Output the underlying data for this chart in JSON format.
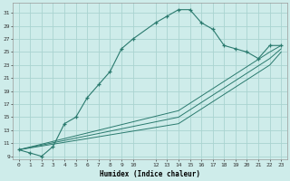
{
  "xlabel": "Humidex (Indice chaleur)",
  "background_color": "#ceecea",
  "grid_color": "#aad4d0",
  "line_color": "#2a7a6e",
  "xlim": [
    -0.5,
    23.5
  ],
  "ylim": [
    8.5,
    32.5
  ],
  "yticks": [
    9,
    11,
    13,
    15,
    17,
    19,
    21,
    23,
    25,
    27,
    29,
    31
  ],
  "xticks": [
    0,
    1,
    2,
    3,
    4,
    5,
    6,
    7,
    8,
    9,
    10,
    12,
    13,
    14,
    15,
    16,
    17,
    18,
    19,
    20,
    21,
    22,
    23
  ],
  "main_x": [
    0,
    1,
    2,
    3,
    4,
    5,
    6,
    7,
    8,
    9,
    10,
    12,
    13,
    14,
    15,
    16,
    17,
    18,
    19,
    20,
    21,
    22,
    23
  ],
  "main_y": [
    10,
    9.5,
    9,
    10.5,
    14,
    15,
    18,
    20,
    22,
    25.5,
    27,
    29.5,
    30.5,
    31.5,
    31.5,
    29.5,
    28.5,
    26,
    25.5,
    25,
    24,
    26,
    26
  ],
  "line2_x": [
    0,
    14,
    22,
    23
  ],
  "line2_y": [
    10,
    16,
    25,
    26
  ],
  "line3_x": [
    0,
    14,
    22,
    23
  ],
  "line3_y": [
    10,
    15,
    24,
    25.5
  ],
  "line4_x": [
    0,
    14,
    22,
    23
  ],
  "line4_y": [
    10,
    14,
    23,
    25
  ]
}
